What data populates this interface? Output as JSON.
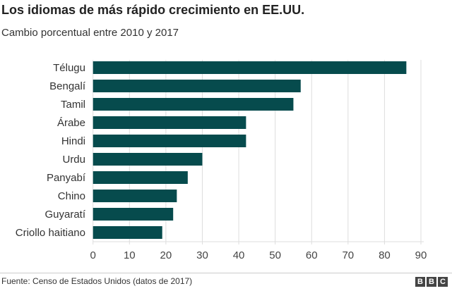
{
  "header": {
    "title": "Los idiomas de más rápido crecimiento en EE.UU.",
    "subtitle": "Cambio porcentual entre 2010 y 2017"
  },
  "footer": {
    "source": "Fuente: Censo de Estados Unidos (datos de 2017)",
    "logo": "BBC"
  },
  "chart_data": {
    "type": "bar",
    "orientation": "horizontal",
    "title": "Los idiomas de más rápido crecimiento en EE.UU.",
    "subtitle": "Cambio porcentual entre 2010 y 2017",
    "categories": [
      "Télugu",
      "Bengalí",
      "Tamil",
      "Árabe",
      "Hindi",
      "Urdu",
      "Panyabí",
      "Chino",
      "Guyaratí",
      "Criollo haitiano"
    ],
    "values": [
      86,
      57,
      55,
      42,
      42,
      30,
      26,
      23,
      22,
      19
    ],
    "xlim": [
      0,
      90
    ],
    "xticks": [
      0,
      10,
      20,
      30,
      40,
      50,
      60,
      70,
      80,
      90
    ],
    "grid": true,
    "bar_color": "#064b4d"
  }
}
